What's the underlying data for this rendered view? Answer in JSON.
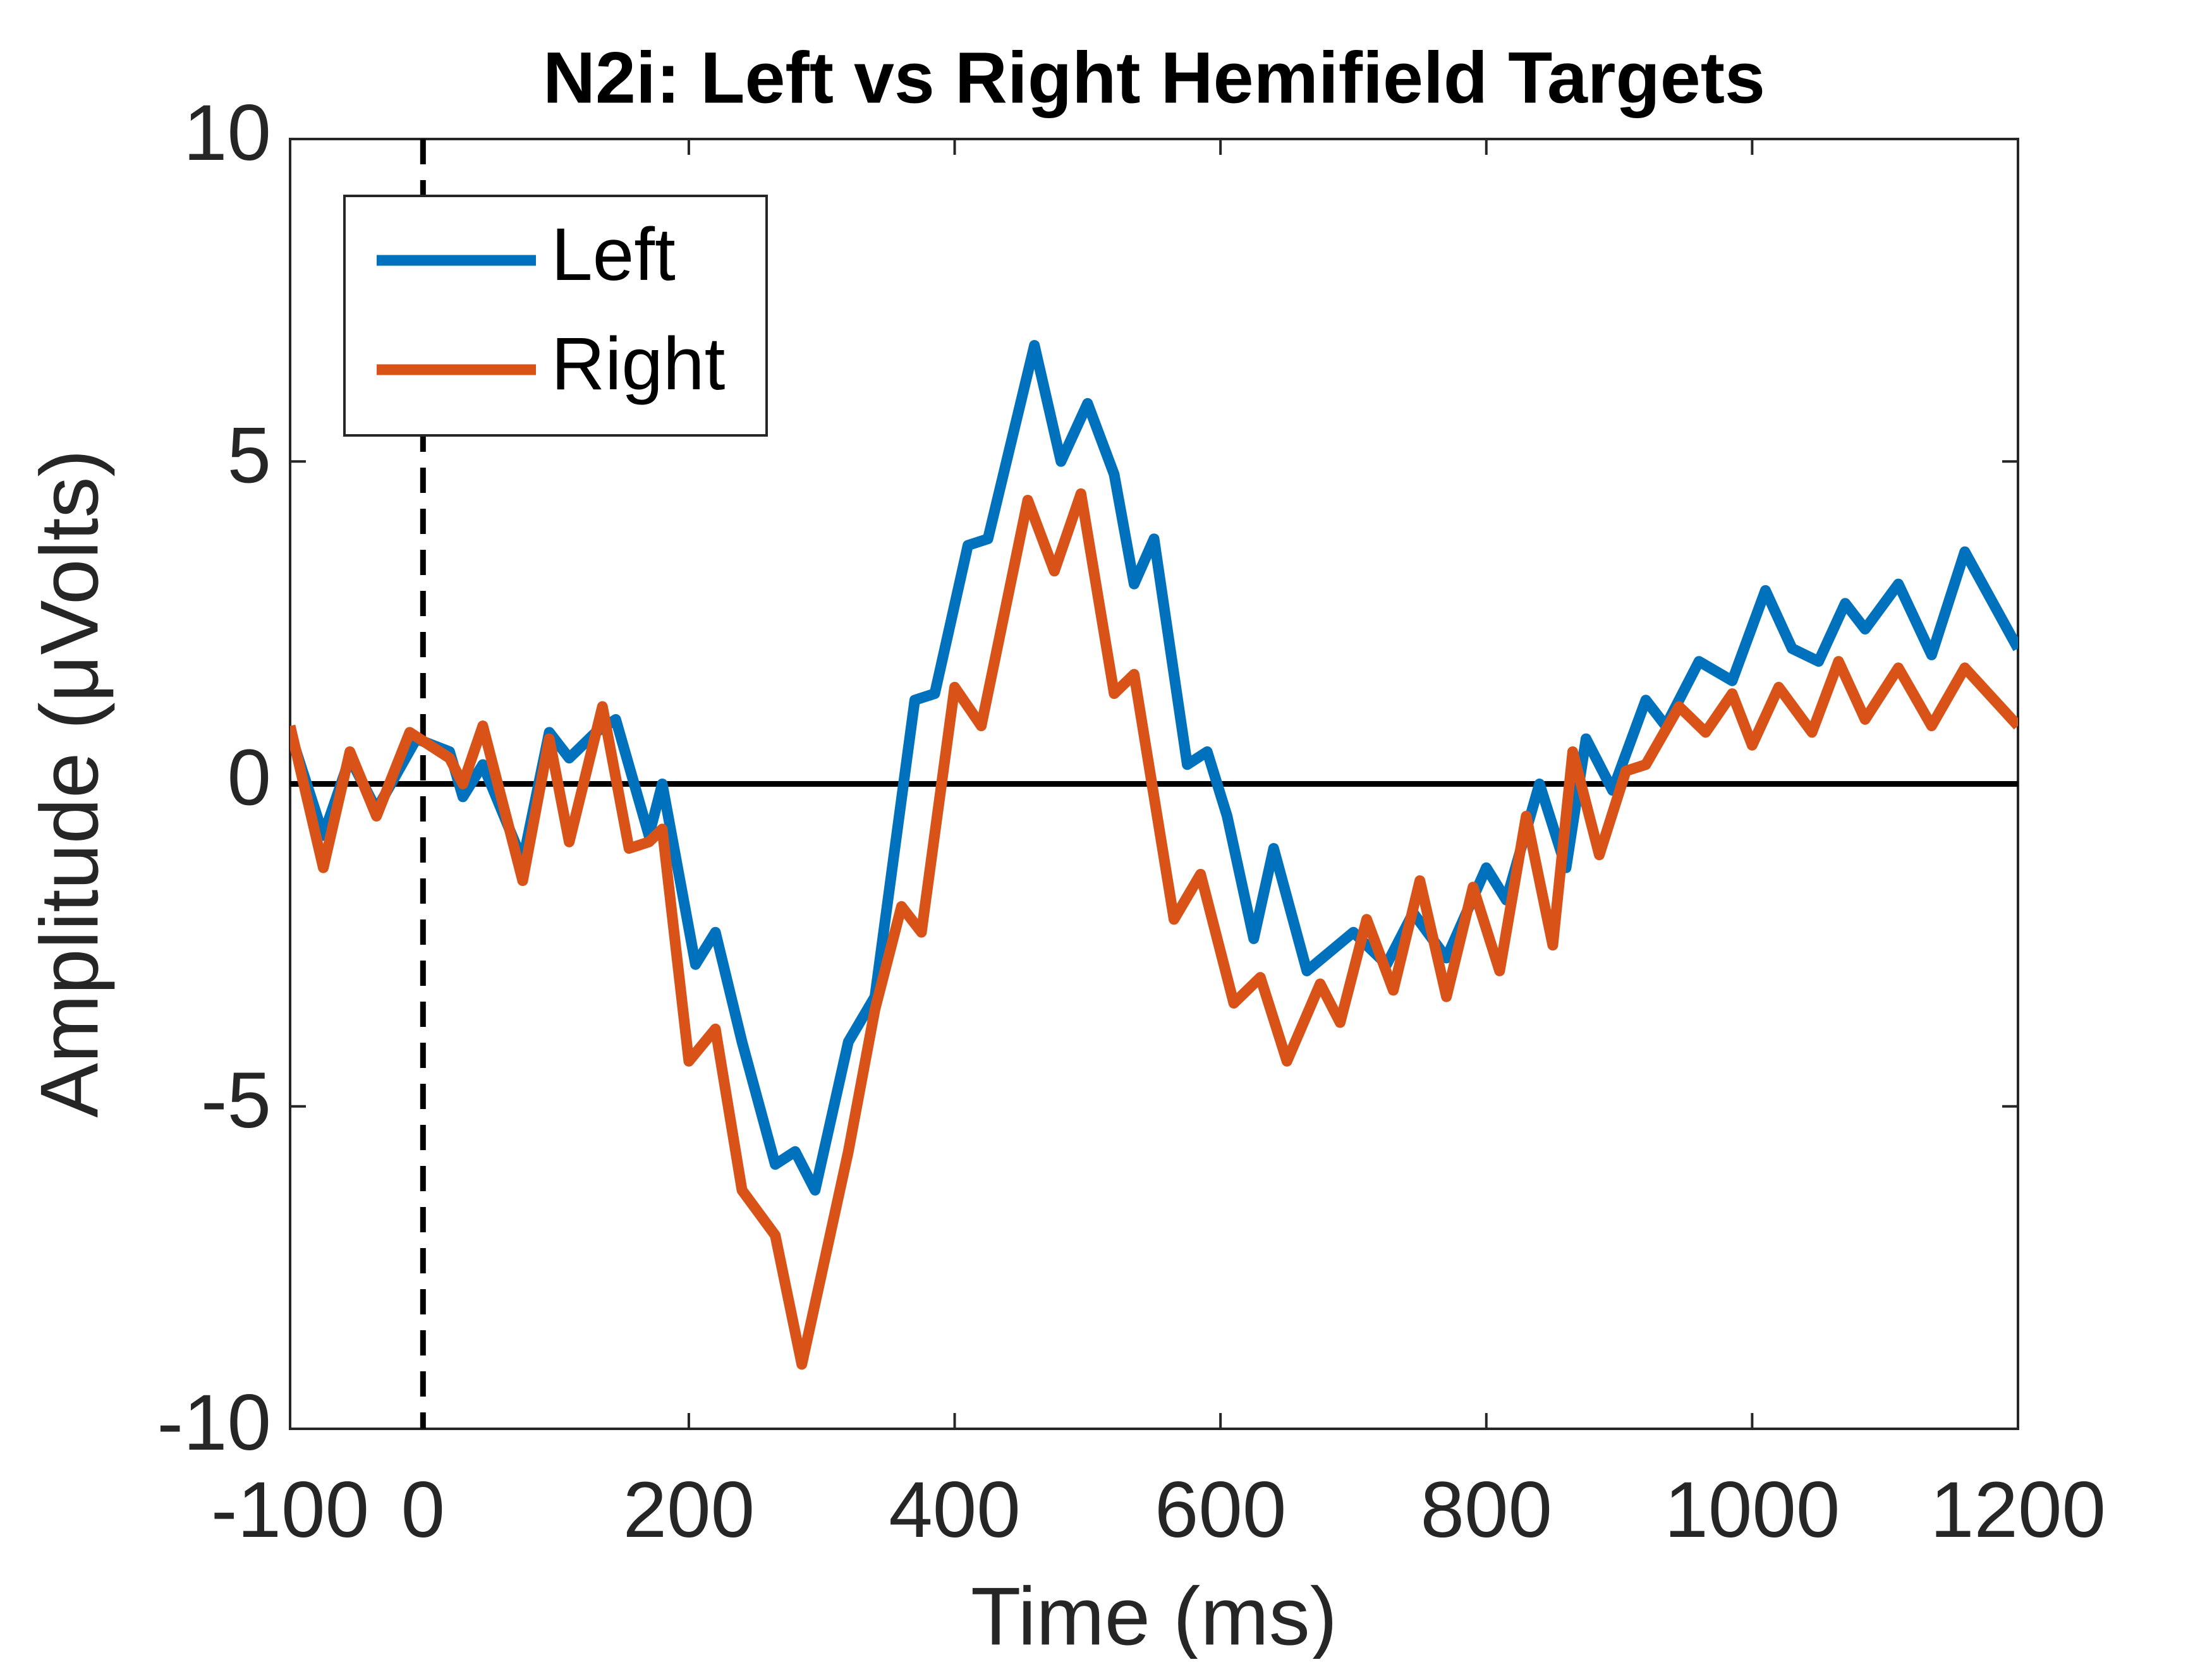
{
  "chart_data": {
    "type": "line",
    "title": "N2i: Left vs Right Hemifield Targets",
    "x_label": "Time (ms)",
    "y_label": "Amplitude (μVolts)",
    "xlim": [
      -100,
      1200
    ],
    "ylim": [
      -10,
      10
    ],
    "xticks": [
      -100,
      0,
      200,
      400,
      600,
      800,
      1000,
      1200
    ],
    "yticks": [
      -10,
      -5,
      0,
      5,
      10
    ],
    "hline": 0,
    "vline": 0,
    "legend": "upper-left",
    "series": [
      {
        "name": "Left",
        "color": "#0072bd",
        "x": [
          -100,
          -75,
          -55,
          -35,
          -5,
          20,
          30,
          45,
          75,
          95,
          110,
          130,
          145,
          170,
          180,
          205,
          220,
          240,
          265,
          280,
          295,
          320,
          340,
          355,
          370,
          385,
          410,
          425,
          460,
          480,
          500,
          520,
          535,
          550,
          575,
          590,
          605,
          625,
          640,
          665,
          700,
          725,
          745,
          770,
          800,
          815,
          840,
          860,
          875,
          895,
          920,
          935,
          960,
          985,
          1010,
          1030,
          1050,
          1070,
          1085,
          1110,
          1135,
          1160,
          1200
        ],
        "values": [
          0.8,
          -0.8,
          0.4,
          -0.4,
          0.7,
          0.5,
          -0.2,
          0.3,
          -1.2,
          0.8,
          0.4,
          0.8,
          1.0,
          -0.8,
          0,
          -2.8,
          -2.3,
          -4,
          -5.9,
          -5.7,
          -6.3,
          -4,
          -3.3,
          -1,
          1.3,
          1.4,
          3.7,
          3.8,
          6.8,
          5.0,
          5.9,
          4.8,
          3.1,
          3.8,
          0.3,
          0.5,
          -0.5,
          -2.4,
          -1.0,
          -2.9,
          -2.3,
          -2.8,
          -2,
          -2.7,
          -1.3,
          -1.8,
          0,
          -1.3,
          0.7,
          -0.1,
          1.3,
          0.9,
          1.9,
          1.6,
          3.0,
          2.1,
          1.9,
          2.8,
          2.4,
          3.1,
          2.0,
          3.6,
          2.1
        ]
      },
      {
        "name": "Right",
        "color": "#d95319",
        "x": [
          -100,
          -75,
          -55,
          -35,
          -10,
          20,
          30,
          45,
          75,
          95,
          110,
          135,
          155,
          170,
          180,
          200,
          220,
          240,
          265,
          285,
          320,
          340,
          360,
          375,
          400,
          420,
          455,
          475,
          495,
          520,
          535,
          565,
          585,
          610,
          630,
          650,
          675,
          690,
          710,
          730,
          750,
          770,
          790,
          810,
          830,
          850,
          865,
          885,
          905,
          920,
          945,
          965,
          985,
          1000,
          1020,
          1045,
          1065,
          1085,
          1110,
          1135,
          1160,
          1200
        ],
        "values": [
          0.9,
          -1.3,
          0.5,
          -0.5,
          0.8,
          0.4,
          0,
          0.9,
          -1.5,
          0.7,
          -0.9,
          1.2,
          -1.0,
          -0.9,
          -0.7,
          -4.3,
          -3.8,
          -6.3,
          -7.0,
          -9.0,
          -5.7,
          -3.5,
          -1.9,
          -2.3,
          1.5,
          0.9,
          4.4,
          3.3,
          4.5,
          1.4,
          1.7,
          -2.1,
          -1.4,
          -3.4,
          -3.0,
          -4.3,
          -3.1,
          -3.7,
          -2.1,
          -3.2,
          -1.5,
          -3.3,
          -1.6,
          -2.9,
          -0.5,
          -2.5,
          0.5,
          -1.1,
          0.2,
          0.3,
          1.2,
          0.8,
          1.4,
          0.6,
          1.5,
          0.8,
          1.9,
          1.0,
          1.8,
          0.9,
          1.8,
          0.9
        ]
      }
    ]
  }
}
